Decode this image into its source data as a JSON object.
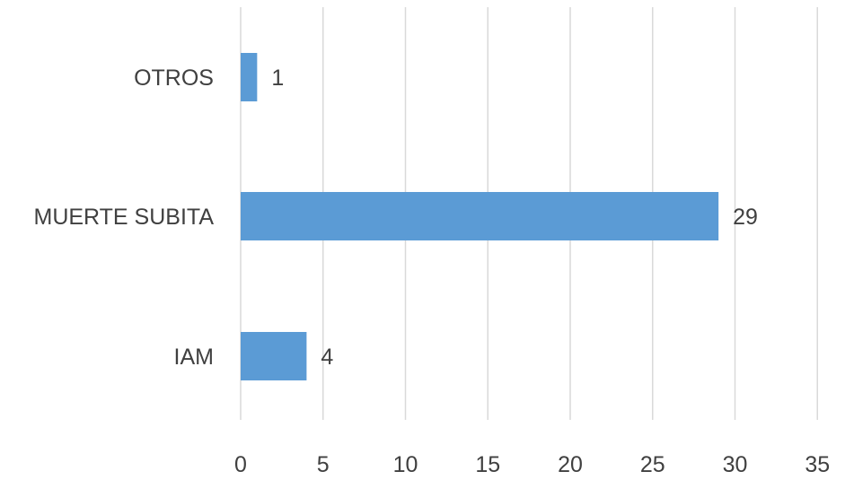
{
  "chart_data": {
    "type": "bar",
    "orientation": "horizontal",
    "categories": [
      "OTROS",
      "MUERTE SUBITA",
      "IAM"
    ],
    "values": [
      1,
      29,
      4
    ],
    "data_labels": [
      "1",
      "29",
      "4"
    ],
    "xlim": [
      0,
      35
    ],
    "x_ticks": [
      0,
      5,
      10,
      15,
      20,
      25,
      30,
      35
    ],
    "x_tick_labels": [
      "0",
      "5",
      "10",
      "15",
      "20",
      "25",
      "30",
      "35"
    ],
    "grid": true,
    "legend": "none",
    "bar_color": "#5b9bd5",
    "grid_color": "#d9d9d9",
    "text_color": "#404040"
  }
}
